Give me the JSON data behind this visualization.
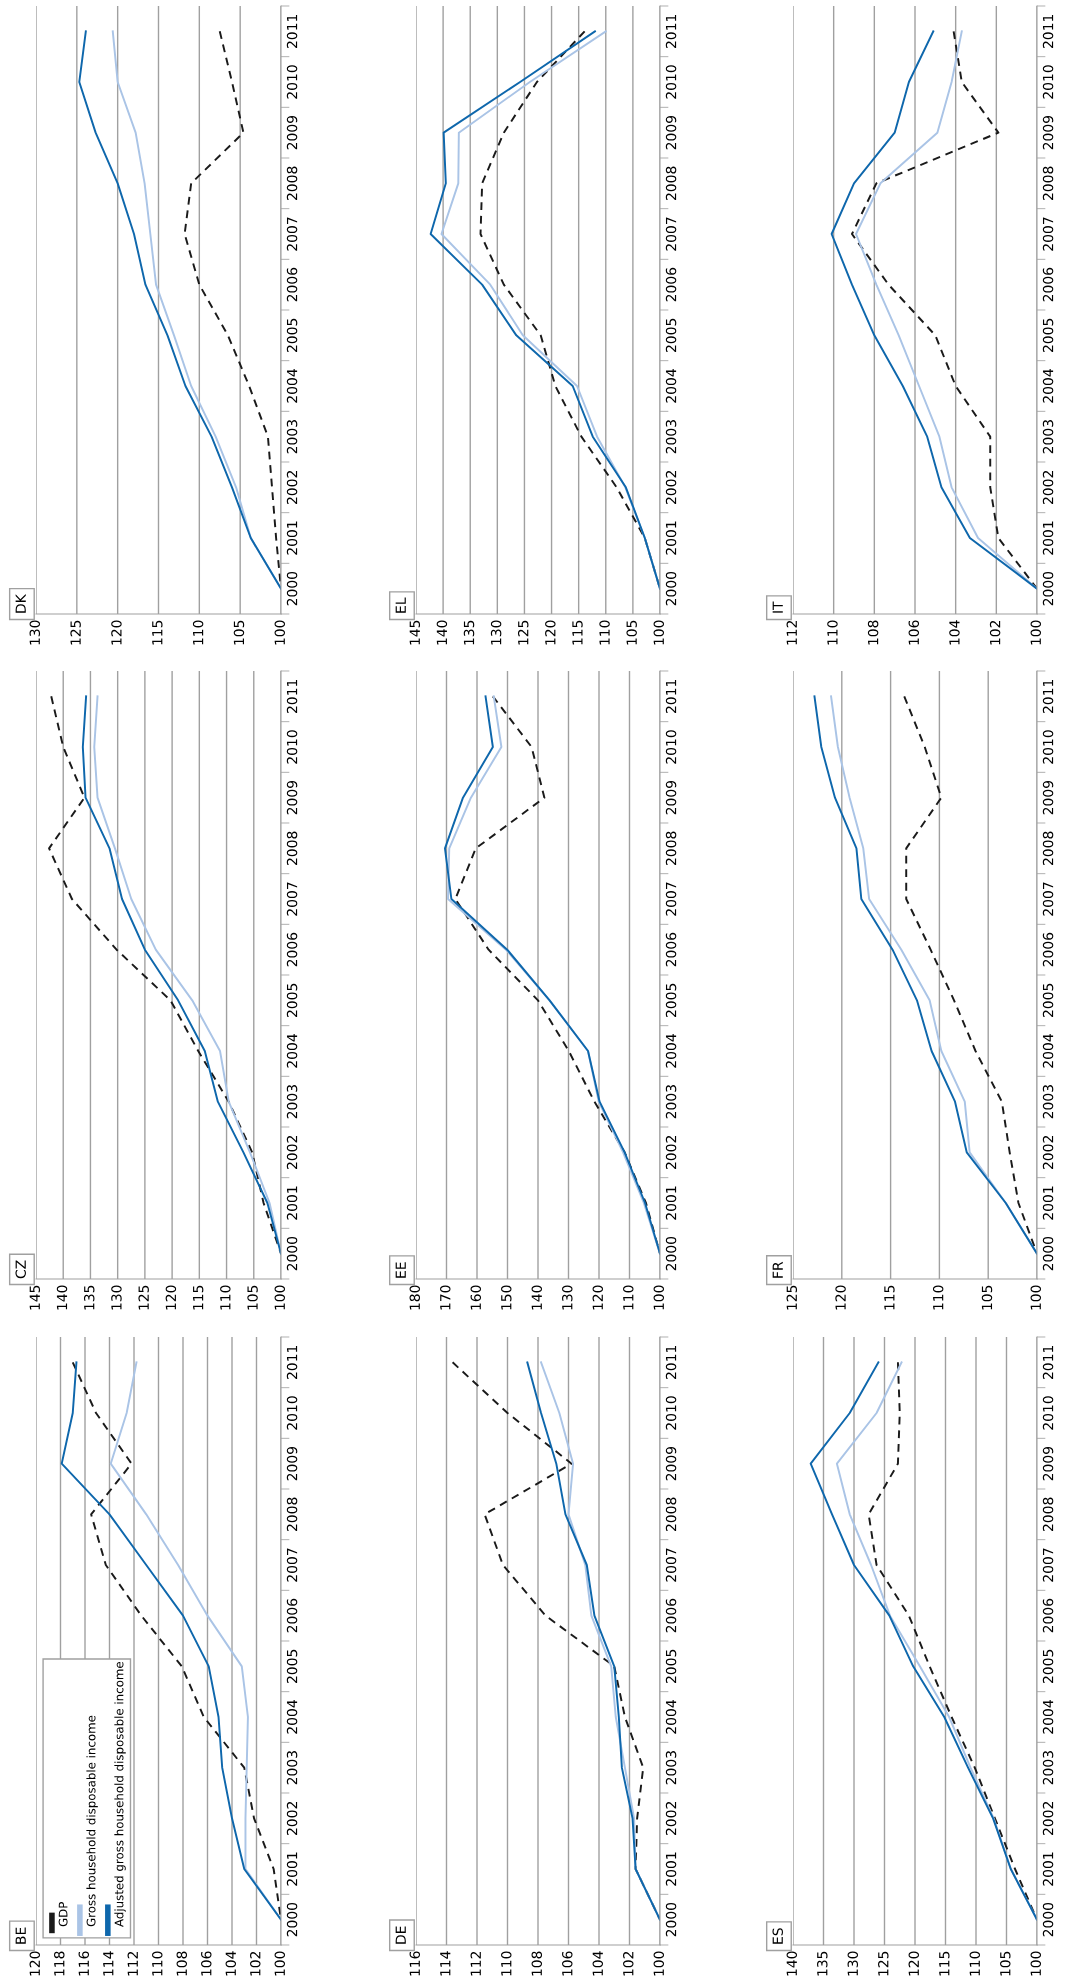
{
  "chart_data": [
    {
      "type": "line",
      "title": "DK",
      "orientation": "horizontal",
      "categories": [
        "2011",
        "2010",
        "2009",
        "2008",
        "2007",
        "2006",
        "2005",
        "2004",
        "2003",
        "2002",
        "2001",
        "2000"
      ],
      "xlim": [
        130,
        100
      ],
      "xticks": [
        100,
        105,
        110,
        115,
        120,
        125,
        130
      ],
      "grid": "x",
      "series": [
        {
          "color": "#1a1a1a",
          "line_style": "dashed",
          "values": [
            107.5,
            106.0,
            104.6,
            111.0,
            111.8,
            110.0,
            106.5,
            103.9,
            101.6,
            101.1,
            100.6,
            100
          ]
        },
        {
          "color": "#aac4e6",
          "line_style": "solid",
          "values": [
            120.6,
            120.0,
            117.8,
            116.7,
            116.0,
            115.3,
            113.1,
            111.0,
            108.0,
            105.5,
            103.7,
            100
          ]
        },
        {
          "color": "#0e67ac",
          "line_style": "solid",
          "values": [
            123.9,
            124.7,
            122.7,
            120.0,
            118.0,
            116.6,
            113.9,
            111.7,
            108.5,
            106.0,
            103.7,
            100
          ]
        }
      ]
    },
    {
      "type": "line",
      "title": "EL",
      "orientation": "horizontal",
      "categories": [
        "2011",
        "2010",
        "2009",
        "2008",
        "2007",
        "2006",
        "2005",
        "2004",
        "2003",
        "2002",
        "2001",
        "2000"
      ],
      "xlim": [
        145,
        100
      ],
      "xticks": [
        100,
        105,
        110,
        115,
        120,
        125,
        130,
        135,
        140,
        145
      ],
      "grid": "x",
      "series": [
        {
          "color": "#1a1a1a",
          "line_style": "dashed",
          "values": [
            113.9,
            122.7,
            128.8,
            132.8,
            133.1,
            128.8,
            122.0,
            119.3,
            114.5,
            108.0,
            102.8,
            100
          ]
        },
        {
          "color": "#aac4e6",
          "line_style": "solid",
          "values": [
            110.0,
            124.0,
            137.1,
            137.2,
            140.3,
            131.3,
            125.3,
            115.3,
            111.6,
            106.4,
            102.8,
            100
          ]
        },
        {
          "color": "#0e67ac",
          "line_style": "solid",
          "values": [
            112.0,
            125.8,
            139.9,
            139.5,
            142.3,
            132.8,
            126.5,
            116.1,
            112.4,
            106.3,
            102.8,
            100
          ]
        }
      ]
    },
    {
      "type": "line",
      "title": "IT",
      "orientation": "horizontal",
      "categories": [
        "2011",
        "2010",
        "2009",
        "2008",
        "2007",
        "2006",
        "2005",
        "2004",
        "2003",
        "2002",
        "2001",
        "2000"
      ],
      "xlim": [
        112,
        100
      ],
      "xticks": [
        100,
        102,
        104,
        106,
        108,
        110,
        112
      ],
      "grid": "x",
      "series": [
        {
          "color": "#1a1a1a",
          "line_style": "dashed",
          "values": [
            104.1,
            103.7,
            101.9,
            107.9,
            109.1,
            107.3,
            105.0,
            104.0,
            102.3,
            102.3,
            101.9,
            100
          ]
        },
        {
          "color": "#aac4e6",
          "line_style": "solid",
          "values": [
            103.7,
            104.2,
            104.9,
            107.7,
            108.9,
            107.9,
            106.8,
            105.8,
            104.8,
            104.2,
            102.9,
            100
          ]
        },
        {
          "color": "#0e67ac",
          "line_style": "solid",
          "values": [
            105.1,
            106.3,
            107.0,
            109.0,
            110.1,
            109.1,
            108.0,
            106.6,
            105.4,
            104.7,
            103.3,
            100
          ]
        }
      ]
    },
    {
      "type": "line",
      "title": "CZ",
      "orientation": "horizontal",
      "categories": [
        "2011",
        "2010",
        "2009",
        "2008",
        "2007",
        "2006",
        "2005",
        "2004",
        "2003",
        "2002",
        "2001",
        "2000"
      ],
      "xlim": [
        145,
        100
      ],
      "xticks": [
        100,
        105,
        110,
        115,
        120,
        125,
        130,
        135,
        140,
        145
      ],
      "grid": "x",
      "series": [
        {
          "color": "#1a1a1a",
          "line_style": "dashed",
          "values": [
            142.2,
            140.0,
            136.1,
            142.6,
            138.4,
            130.2,
            120.3,
            115.2,
            109.6,
            105.3,
            103.2,
            100
          ]
        },
        {
          "color": "#aac4e6",
          "line_style": "solid",
          "values": [
            133.7,
            134.3,
            133.7,
            130.5,
            127.5,
            123.0,
            116.3,
            111.2,
            109.6,
            105.7,
            102.1,
            100
          ]
        },
        {
          "color": "#0e67ac",
          "line_style": "solid",
          "values": [
            135.8,
            136.4,
            135.9,
            131.5,
            129.2,
            125.0,
            118.9,
            114.0,
            111.6,
            106.9,
            102.5,
            100
          ]
        }
      ]
    },
    {
      "type": "line",
      "title": "EE",
      "orientation": "horizontal",
      "categories": [
        "2011",
        "2010",
        "2009",
        "2008",
        "2007",
        "2006",
        "2005",
        "2004",
        "2003",
        "2002",
        "2001",
        "2000"
      ],
      "xlim": [
        180,
        100
      ],
      "xticks": [
        100,
        110,
        120,
        130,
        140,
        150,
        160,
        170,
        180
      ],
      "grid": "x",
      "series": [
        {
          "color": "#1a1a1a",
          "line_style": "dashed",
          "values": [
            154.8,
            142.1,
            137.9,
            160.4,
            167.1,
            156.2,
            140.0,
            129.9,
            121.5,
            111.6,
            104.6,
            100
          ]
        },
        {
          "color": "#aac4e6",
          "line_style": "solid",
          "values": [
            154.5,
            152.0,
            162.0,
            169.1,
            169.5,
            150.5,
            136.2,
            123.6,
            120.1,
            112.1,
            105.3,
            100
          ]
        },
        {
          "color": "#0e67ac",
          "line_style": "solid",
          "values": [
            157.2,
            154.8,
            164.6,
            170.5,
            168.4,
            150.1,
            136.2,
            123.6,
            119.8,
            111.6,
            104.9,
            100
          ]
        }
      ]
    },
    {
      "type": "line",
      "title": "FR",
      "orientation": "horizontal",
      "categories": [
        "2011",
        "2010",
        "2009",
        "2008",
        "2007",
        "2006",
        "2005",
        "2004",
        "2003",
        "2002",
        "2001",
        "2000"
      ],
      "xlim": [
        125,
        100
      ],
      "xticks": [
        100,
        105,
        110,
        115,
        120,
        125
      ],
      "grid": "x",
      "series": [
        {
          "color": "#1a1a1a",
          "line_style": "dashed",
          "values": [
            113.6,
            111.5,
            109.8,
            113.4,
            113.4,
            110.9,
            108.5,
            106.3,
            103.6,
            102.8,
            101.9,
            100
          ]
        },
        {
          "color": "#aac4e6",
          "line_style": "solid",
          "values": [
            121.1,
            120.4,
            119.2,
            117.8,
            117.2,
            113.9,
            111.0,
            109.8,
            107.4,
            106.9,
            103.2,
            100
          ]
        },
        {
          "color": "#0e67ac",
          "line_style": "solid",
          "values": [
            122.8,
            122.1,
            120.7,
            118.5,
            118.0,
            114.8,
            112.3,
            110.8,
            108.4,
            107.2,
            103.2,
            100
          ]
        }
      ]
    },
    {
      "type": "line",
      "title": "BE",
      "orientation": "horizontal",
      "categories": [
        "2011",
        "2010",
        "2009",
        "2008",
        "2007",
        "2006",
        "2005",
        "2004",
        "2003",
        "2002",
        "2001",
        "2000"
      ],
      "xlim": [
        120,
        100
      ],
      "xticks": [
        100,
        102,
        104,
        106,
        108,
        110,
        112,
        114,
        116,
        118,
        120
      ],
      "grid": "x",
      "legend": "bottom left",
      "series": [
        {
          "name": "GDP",
          "color": "#1a1a1a",
          "line_style": "dashed",
          "values": [
            117.0,
            115.1,
            112.2,
            115.5,
            114.3,
            111.4,
            108.1,
            106.3,
            103.0,
            102.2,
            100.6,
            100
          ]
        },
        {
          "name": "Gross household disposable income",
          "color": "#aac4e6",
          "line_style": "solid",
          "values": [
            111.8,
            112.6,
            113.9,
            111.0,
            108.4,
            106.0,
            103.2,
            102.7,
            102.8,
            102.9,
            102.9,
            100
          ]
        },
        {
          "name": "Adjusted gross household disposable income",
          "color": "#0e67ac",
          "line_style": "solid",
          "values": [
            116.7,
            117.0,
            117.9,
            114.0,
            111.0,
            108.0,
            105.9,
            105.1,
            104.8,
            104.0,
            103.0,
            100
          ]
        }
      ]
    },
    {
      "type": "line",
      "title": "DE",
      "orientation": "horizontal",
      "categories": [
        "2011",
        "2010",
        "2009",
        "2008",
        "2007",
        "2006",
        "2005",
        "2004",
        "2003",
        "2002",
        "2001",
        "2000"
      ],
      "xlim": [
        116,
        100
      ],
      "xticks": [
        100,
        102,
        104,
        106,
        108,
        110,
        112,
        114,
        116
      ],
      "grid": "x",
      "series": [
        {
          "color": "#1a1a1a",
          "line_style": "dashed",
          "values": [
            113.6,
            110.0,
            105.8,
            111.5,
            110.3,
            107.5,
            103.0,
            102.3,
            101.1,
            101.5,
            101.6,
            100
          ]
        },
        {
          "color": "#aac4e6",
          "line_style": "solid",
          "values": [
            107.8,
            106.6,
            105.7,
            106.0,
            104.9,
            104.5,
            103.2,
            102.9,
            102.3,
            101.7,
            101.6,
            100
          ]
        },
        {
          "color": "#0e67ac",
          "line_style": "solid",
          "values": [
            108.7,
            107.8,
            106.8,
            106.2,
            104.8,
            104.3,
            103.0,
            102.7,
            102.5,
            101.8,
            101.6,
            100
          ]
        }
      ]
    },
    {
      "type": "line",
      "title": "ES",
      "orientation": "horizontal",
      "categories": [
        "2011",
        "2010",
        "2009",
        "2008",
        "2007",
        "2006",
        "2005",
        "2004",
        "2003",
        "2002",
        "2001",
        "2000"
      ],
      "xlim": [
        140,
        100
      ],
      "xticks": [
        100,
        105,
        110,
        115,
        120,
        125,
        130,
        135,
        140
      ],
      "grid": "x",
      "series": [
        {
          "color": "#1a1a1a",
          "line_style": "dashed",
          "values": [
            122.8,
            122.5,
            122.8,
            127.6,
            126.3,
            121.0,
            117.6,
            114.0,
            110.2,
            106.9,
            103.6,
            100
          ]
        },
        {
          "color": "#aac4e6",
          "line_style": "solid",
          "values": [
            122.2,
            126.3,
            132.8,
            130.7,
            127.2,
            124.1,
            119.2,
            114.4,
            110.9,
            107.1,
            104.3,
            100
          ]
        },
        {
          "color": "#0e67ac",
          "line_style": "solid",
          "values": [
            126.0,
            130.7,
            137.1,
            133.6,
            130.0,
            124.2,
            120.3,
            115.2,
            111.3,
            107.2,
            104.3,
            100
          ]
        }
      ]
    }
  ]
}
